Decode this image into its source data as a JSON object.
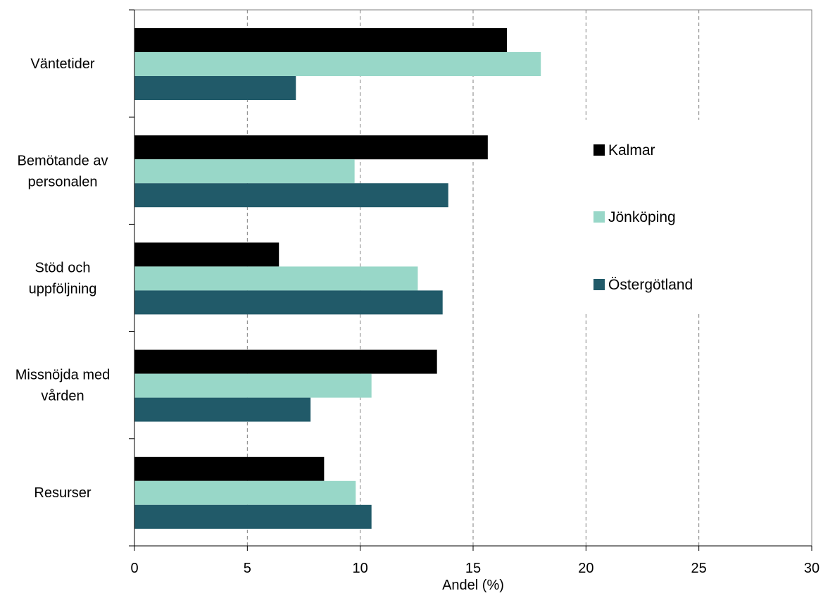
{
  "chart_data": {
    "type": "bar",
    "orientation": "horizontal",
    "categories": [
      [
        "Väntetider"
      ],
      [
        "Bemötande av",
        "personalen"
      ],
      [
        "Stöd och",
        "uppföljning"
      ],
      [
        "Missnöjda med",
        "vården"
      ],
      [
        "Resurser"
      ]
    ],
    "series": [
      {
        "name": "Kalmar",
        "color": "#000000",
        "values": [
          16.5,
          15.65,
          6.4,
          13.4,
          8.4
        ]
      },
      {
        "name": "Jönköping",
        "color": "#98d7c8",
        "values": [
          18.0,
          9.75,
          12.55,
          10.5,
          9.8
        ]
      },
      {
        "name": "Östergötland",
        "color": "#215a69",
        "values": [
          7.15,
          13.9,
          13.65,
          7.8,
          10.5
        ]
      }
    ],
    "xlabel": "Andel (%)",
    "xlim": [
      0,
      30
    ],
    "xticks": [
      0,
      5,
      10,
      15,
      20,
      25,
      30
    ],
    "grid": "vertical dashed",
    "legend_position": "right"
  }
}
